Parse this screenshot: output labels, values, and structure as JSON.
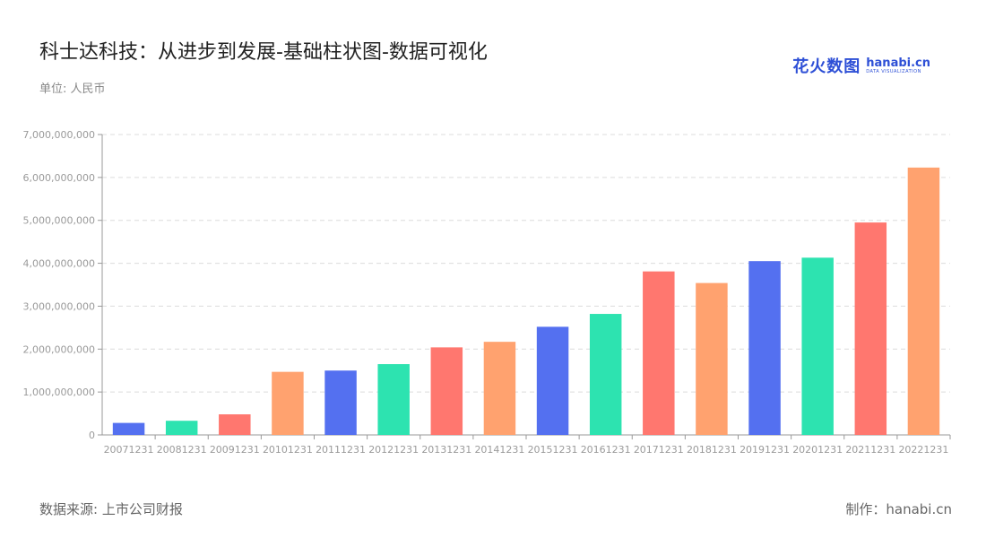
{
  "header": {
    "title": "科士达科技：从进步到发展-基础柱状图-数据可视化",
    "unit": "单位: 人民币"
  },
  "logo": {
    "cn": "花火数图",
    "en": "hanabi.cn",
    "sub": "DATA VISUALIZATION"
  },
  "footer": {
    "source": "数据来源: 上市公司财报",
    "credit": "制作：hanabi.cn"
  },
  "chart_data": {
    "type": "bar",
    "categories": [
      "20071231",
      "20081231",
      "20091231",
      "20101231",
      "20111231",
      "20121231",
      "20131231",
      "20141231",
      "20151231",
      "20161231",
      "20171231",
      "20181231",
      "20191231",
      "20201231",
      "20211231",
      "20221231"
    ],
    "values": [
      280000000,
      330000000,
      480000000,
      1470000000,
      1500000000,
      1650000000,
      2040000000,
      2170000000,
      2520000000,
      2820000000,
      3810000000,
      3540000000,
      4050000000,
      4130000000,
      4950000000,
      6230000000
    ],
    "colors": [
      "#5470f0",
      "#2de3b0",
      "#ff776f",
      "#ffa26f"
    ],
    "ylim": [
      0,
      7000000000
    ],
    "yticks": [
      0,
      1000000000,
      2000000000,
      3000000000,
      4000000000,
      5000000000,
      6000000000,
      7000000000
    ],
    "grid": true,
    "title": "科士达科技：从进步到发展-基础柱状图-数据可视化",
    "xlabel": "",
    "ylabel": ""
  }
}
